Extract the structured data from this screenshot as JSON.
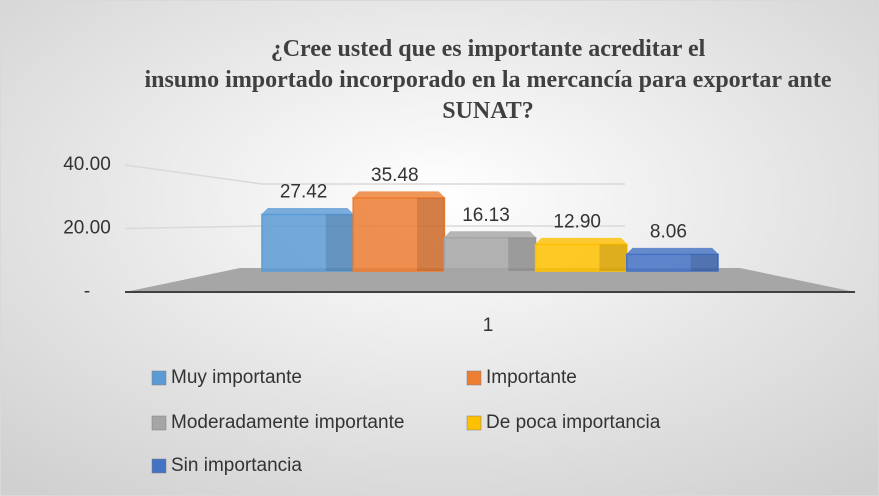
{
  "chart_data": {
    "type": "bar",
    "title": "¿Cree usted que es importante acreditar el insumo importado incorporado en la mercancía para exportar ante SUNAT?",
    "categories": [
      "1"
    ],
    "series": [
      {
        "name": "Muy importante",
        "color": "#5b9bd5",
        "values": [
          27.42
        ]
      },
      {
        "name": "Importante",
        "color": "#ed7d31",
        "values": [
          35.48
        ]
      },
      {
        "name": "Moderadamente importante",
        "color": "#a5a5a5",
        "values": [
          16.13
        ]
      },
      {
        "name": "De poca importancia",
        "color": "#ffc000",
        "values": [
          12.9
        ],
        "value_labels": [
          "12.90"
        ]
      },
      {
        "name": "Sin importancia",
        "color": "#4472c4",
        "values": [
          8.06
        ]
      }
    ],
    "ylim": [
      0,
      40
    ],
    "yticks": [
      {
        "value": 0,
        "label": "-"
      },
      {
        "value": 20,
        "label": "20.00"
      },
      {
        "value": 40,
        "label": "40.00"
      }
    ],
    "grid": true,
    "legend": "bottom"
  }
}
